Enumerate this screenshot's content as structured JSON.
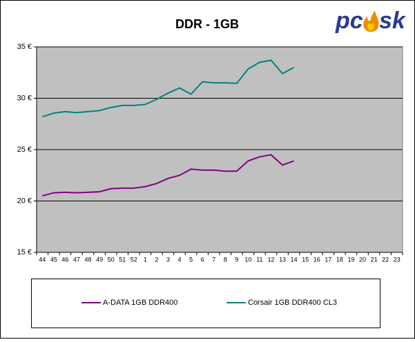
{
  "chart_data": {
    "type": "line",
    "title": "DDR - 1GB",
    "logo": [
      "pc",
      "sk"
    ],
    "categories": [
      "44",
      "45",
      "46",
      "47",
      "48",
      "49",
      "50",
      "51",
      "52",
      "1",
      "2",
      "3",
      "4",
      "5",
      "6",
      "7",
      "8",
      "9",
      "10",
      "11",
      "12",
      "13",
      "14",
      "15",
      "16",
      "17",
      "18",
      "19",
      "20",
      "21",
      "22",
      "23"
    ],
    "series": [
      {
        "name": "A-DATA 1GB DDR400",
        "color": "#800080",
        "values": [
          20.5,
          20.8,
          20.85,
          20.8,
          20.85,
          20.9,
          21.2,
          21.25,
          21.25,
          21.4,
          21.7,
          22.2,
          22.5,
          23.1,
          23.0,
          23.0,
          22.9,
          22.9,
          23.9,
          24.3,
          24.5,
          23.5,
          23.9,
          null,
          null,
          null,
          null,
          null,
          null,
          null,
          null,
          null
        ]
      },
      {
        "name": "Corsair 1GB DDR400 CL3",
        "color": "#008080",
        "values": [
          28.2,
          28.55,
          28.7,
          28.6,
          28.7,
          28.8,
          29.1,
          29.3,
          29.3,
          29.4,
          29.9,
          30.5,
          31.0,
          30.4,
          31.6,
          31.5,
          31.5,
          31.45,
          32.85,
          33.5,
          33.7,
          32.4,
          33.0,
          null,
          null,
          null,
          null,
          null,
          null,
          null,
          null,
          null
        ]
      }
    ],
    "ylim": [
      15,
      35
    ],
    "yticks": [
      {
        "value": 15,
        "label": "15 €"
      },
      {
        "value": 20,
        "label": "20 €"
      },
      {
        "value": 25,
        "label": "25 €"
      },
      {
        "value": 30,
        "label": "30 €"
      },
      {
        "value": 35,
        "label": "35 €"
      }
    ],
    "grid": true,
    "legend": "bottom"
  }
}
